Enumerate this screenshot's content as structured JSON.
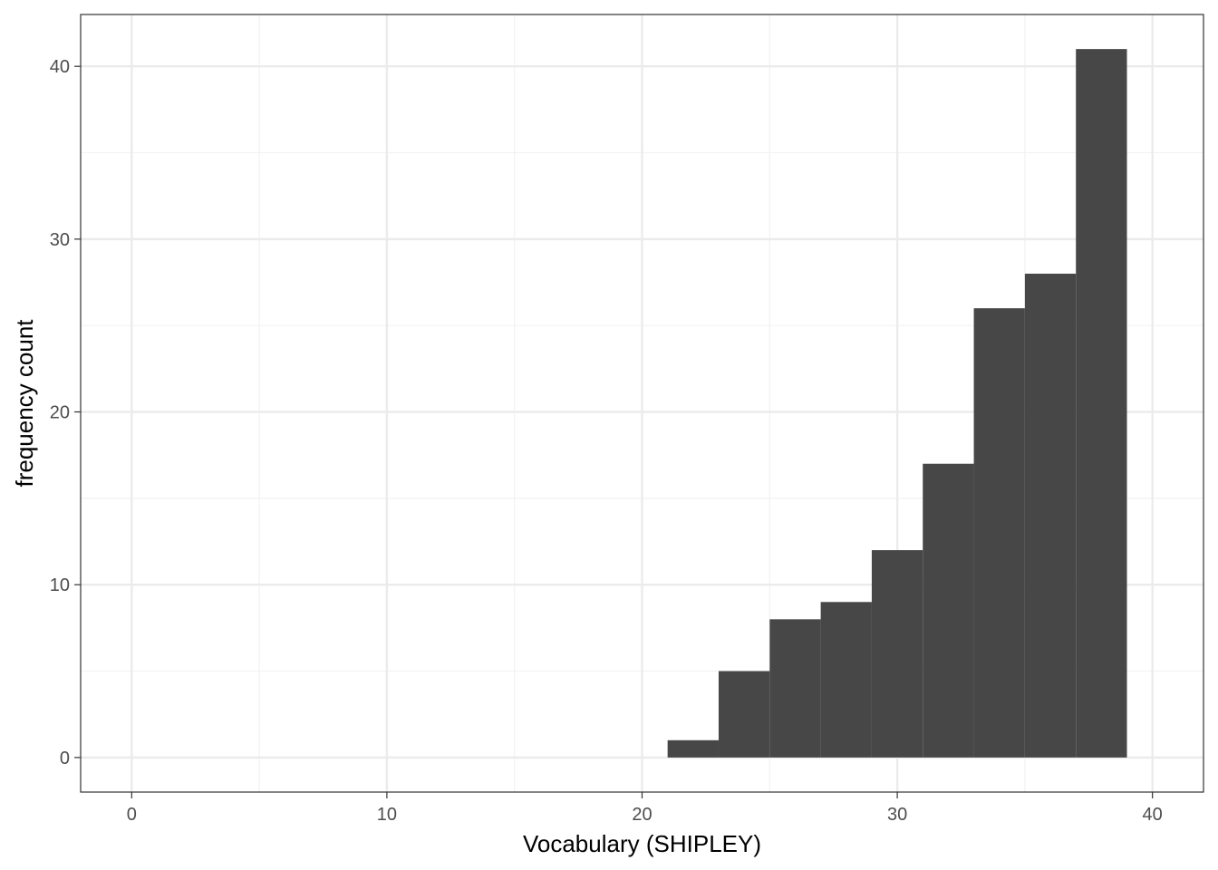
{
  "chart_data": {
    "type": "bar",
    "histogram": true,
    "xlabel": "Vocabulary (SHIPLEY)",
    "ylabel": "frequency count",
    "xlim": [
      -2,
      42
    ],
    "ylim": [
      -2,
      43
    ],
    "x_ticks": [
      0,
      10,
      20,
      30,
      40
    ],
    "y_ticks": [
      0,
      10,
      20,
      30,
      40
    ],
    "x_minor": [
      5,
      15,
      25,
      35
    ],
    "y_minor": [
      5,
      15,
      25,
      35
    ],
    "grid": true,
    "bins": [
      {
        "x0": 21,
        "x1": 23,
        "count": 1
      },
      {
        "x0": 23,
        "x1": 25,
        "count": 5
      },
      {
        "x0": 25,
        "x1": 27,
        "count": 8
      },
      {
        "x0": 27,
        "x1": 29,
        "count": 9
      },
      {
        "x0": 29,
        "x1": 31,
        "count": 12
      },
      {
        "x0": 31,
        "x1": 33,
        "count": 17
      },
      {
        "x0": 33,
        "x1": 35,
        "count": 26
      },
      {
        "x0": 35,
        "x1": 37,
        "count": 28
      },
      {
        "x0": 37,
        "x1": 39,
        "count": 41
      }
    ],
    "colors": {
      "bar": "#474747",
      "grid_major": "#ebebeb",
      "grid_minor": "#f2f2f2",
      "panel_border": "#333333",
      "tick": "#333333"
    }
  }
}
